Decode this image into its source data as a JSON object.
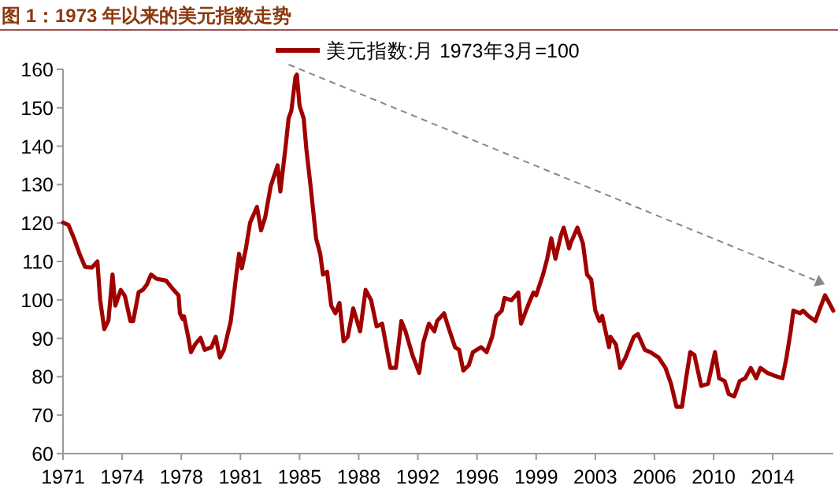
{
  "chart_data": {
    "type": "line",
    "title": "图 1：1973 年以来的美元指数走势",
    "legend": "top",
    "grid": false,
    "line_style": "solid",
    "xlim": [
      "1971-01",
      "2017-09"
    ],
    "ylim": [
      60,
      160
    ],
    "yticks": [
      60,
      70,
      80,
      90,
      100,
      110,
      120,
      130,
      140,
      150,
      160
    ],
    "xticks": [
      {
        "value": "1971-01",
        "label": "1971"
      },
      {
        "value": "1974-08",
        "label": "1974"
      },
      {
        "value": "1978-03",
        "label": "1978"
      },
      {
        "value": "1981-10",
        "label": "1981"
      },
      {
        "value": "1985-05",
        "label": "1985"
      },
      {
        "value": "1988-12",
        "label": "1988"
      },
      {
        "value": "1992-07",
        "label": "1992"
      },
      {
        "value": "1996-02",
        "label": "1996"
      },
      {
        "value": "1999-09",
        "label": "1999"
      },
      {
        "value": "2003-04",
        "label": "2003"
      },
      {
        "value": "2006-11",
        "label": "2006"
      },
      {
        "value": "2010-06",
        "label": "2010"
      },
      {
        "value": "2014-01",
        "label": "2014"
      }
    ],
    "series": [
      {
        "name": "美元指数:月 1973年3月=100",
        "color": "#a00000",
        "x": [
          "1971-01",
          "1971-05",
          "1971-09",
          "1972-01",
          "1972-05",
          "1972-10",
          "1973-01",
          "1973-02",
          "1973-04",
          "1973-07",
          "1973-10",
          "1974-01",
          "1974-03",
          "1974-07",
          "1974-10",
          "1975-02",
          "1975-04",
          "1975-08",
          "1975-11",
          "1976-02",
          "1976-05",
          "1976-09",
          "1977-04",
          "1977-08",
          "1978-01",
          "1978-02",
          "1978-04",
          "1978-05",
          "1978-08",
          "1978-10",
          "1979-01",
          "1979-05",
          "1979-08",
          "1980-01",
          "1980-04",
          "1980-07",
          "1980-10",
          "1981-03",
          "1981-07",
          "1981-09",
          "1981-11",
          "1982-02",
          "1982-05",
          "1982-10",
          "1983-01",
          "1983-04",
          "1983-08",
          "1984-01",
          "1984-03",
          "1984-07",
          "1984-09",
          "1984-11",
          "1985-02",
          "1985-03",
          "1985-05",
          "1985-08",
          "1985-10",
          "1986-01",
          "1986-03",
          "1986-05",
          "1986-08",
          "1986-10",
          "1987-01",
          "1987-04",
          "1987-07",
          "1987-10",
          "1988-01",
          "1988-04",
          "1988-08",
          "1989-01",
          "1989-05",
          "1989-09",
          "1990-01",
          "1990-05",
          "1990-11",
          "1991-03",
          "1991-07",
          "1991-10",
          "1992-03",
          "1992-08",
          "1992-11",
          "1993-03",
          "1993-07",
          "1993-09",
          "1994-02",
          "1994-05",
          "1994-10",
          "1995-01",
          "1995-04",
          "1995-08",
          "1995-11",
          "1996-05",
          "1996-09",
          "1997-01",
          "1997-04",
          "1997-08",
          "1997-10",
          "1998-03",
          "1998-08",
          "1998-10",
          "1999-03",
          "1999-07",
          "1999-09",
          "2000-02",
          "2000-05",
          "2000-08",
          "2000-11",
          "2001-03",
          "2001-05",
          "2001-09",
          "2001-10",
          "2002-03",
          "2002-07",
          "2002-10",
          "2003-01",
          "2003-04",
          "2003-07",
          "2003-09",
          "2004-02",
          "2004-03",
          "2004-07",
          "2004-10",
          "2005-02",
          "2005-08",
          "2005-11",
          "2006-04",
          "2006-08",
          "2007-02",
          "2007-07",
          "2007-11",
          "2008-03",
          "2008-07",
          "2008-10",
          "2009-01",
          "2009-04",
          "2009-09",
          "2010-02",
          "2010-07",
          "2010-10",
          "2011-02",
          "2011-05",
          "2011-09",
          "2012-01",
          "2012-05",
          "2012-09",
          "2013-01",
          "2013-04",
          "2013-09",
          "2014-02",
          "2014-08",
          "2014-11",
          "2015-02",
          "2015-04",
          "2015-09",
          "2015-11",
          "2016-03",
          "2016-08",
          "2016-10",
          "2017-03",
          "2017-05",
          "2017-09"
        ],
        "values": [
          120.1,
          119.5,
          116,
          112,
          108.6,
          108.4,
          109.6,
          110,
          100,
          92.4,
          94.6,
          106.6,
          98.5,
          102.6,
          101,
          94.5,
          94.5,
          102,
          102.6,
          104,
          106.6,
          105.5,
          105,
          103.2,
          101.2,
          96.5,
          95,
          95.7,
          90.4,
          86.4,
          88.4,
          90.1,
          87,
          87.7,
          90.4,
          85,
          87,
          94.5,
          106.6,
          112,
          108.2,
          113.4,
          120.1,
          124.2,
          118.1,
          121.5,
          129.6,
          135,
          128.2,
          140.4,
          147.2,
          149.2,
          158,
          158.6,
          150.5,
          147.2,
          139,
          129.6,
          122.8,
          116,
          112,
          106.6,
          107.3,
          98.5,
          96.5,
          99.2,
          89.2,
          90.4,
          97.8,
          91.8,
          102.6,
          99.9,
          93.1,
          93.8,
          82.3,
          82.3,
          94.5,
          91.8,
          85.7,
          81,
          89,
          93.8,
          91.8,
          94.5,
          96.5,
          93.1,
          87.7,
          87,
          81.6,
          83,
          86.4,
          87.7,
          86.4,
          90.4,
          95.8,
          97.2,
          100.5,
          99.9,
          101.9,
          93.8,
          98.5,
          101.9,
          101.2,
          106.6,
          110.7,
          116,
          110.7,
          116.8,
          118.8,
          113.4,
          114.7,
          118.8,
          114.7,
          106.6,
          105.3,
          97.2,
          94.5,
          95.8,
          87.7,
          90.4,
          88.4,
          82.3,
          85,
          90.4,
          91.1,
          87,
          86.4,
          85,
          82.3,
          78.2,
          72.2,
          72.2,
          79.6,
          86.4,
          85.7,
          77.6,
          78.2,
          86.4,
          79.6,
          78.9,
          75.5,
          74.9,
          78.9,
          79.6,
          82.3,
          79.6,
          82.3,
          81,
          80.3,
          79.6,
          85,
          91.8,
          97.2,
          96.5,
          97.2,
          95.8,
          94.5,
          96.5,
          101.2,
          99.9,
          97.2
        ]
      }
    ]
  }
}
